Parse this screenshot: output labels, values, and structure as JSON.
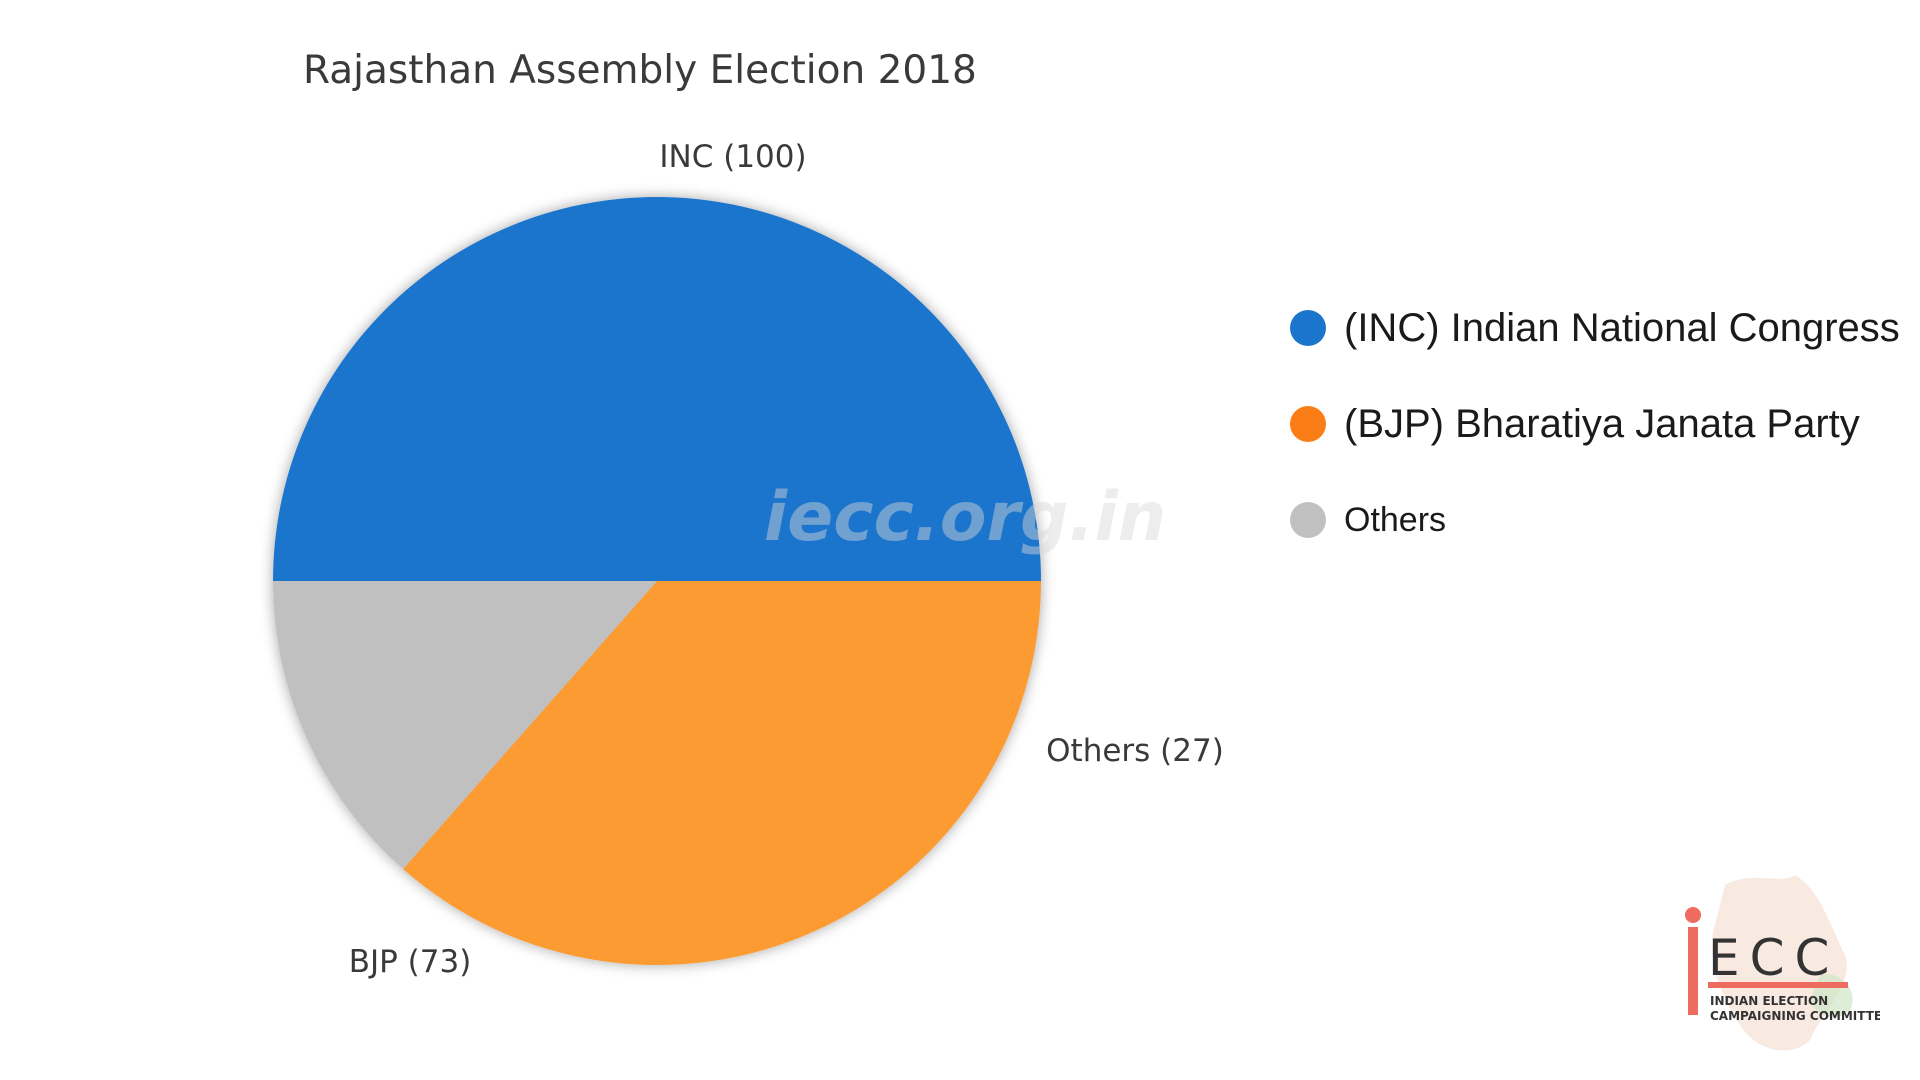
{
  "chart_data": {
    "type": "pie",
    "title": "Rajasthan Assembly Election 2018",
    "categories": [
      "INC",
      "BJP",
      "Others"
    ],
    "values": [
      100,
      73,
      27
    ],
    "slice_labels": [
      "INC (100)",
      "BJP (73)",
      "Others (27)"
    ],
    "colors": [
      "#1c75cd",
      "#fb9b33",
      "#c0c0c0"
    ],
    "legend": {
      "placement": "right",
      "entries": [
        {
          "label": "(INC) Indian National Congress",
          "color": "#1c75cd"
        },
        {
          "label": "(BJP) Bharatiya Janata Party",
          "color": "#fb7d15"
        },
        {
          "label": "Others",
          "color": "#c0c0c0"
        }
      ]
    }
  },
  "watermark": "iecc.org.in",
  "logo": {
    "letters": "ECC",
    "line1": "INDIAN ELECTION",
    "line2": "CAMPAIGNING COMMITTEE"
  }
}
